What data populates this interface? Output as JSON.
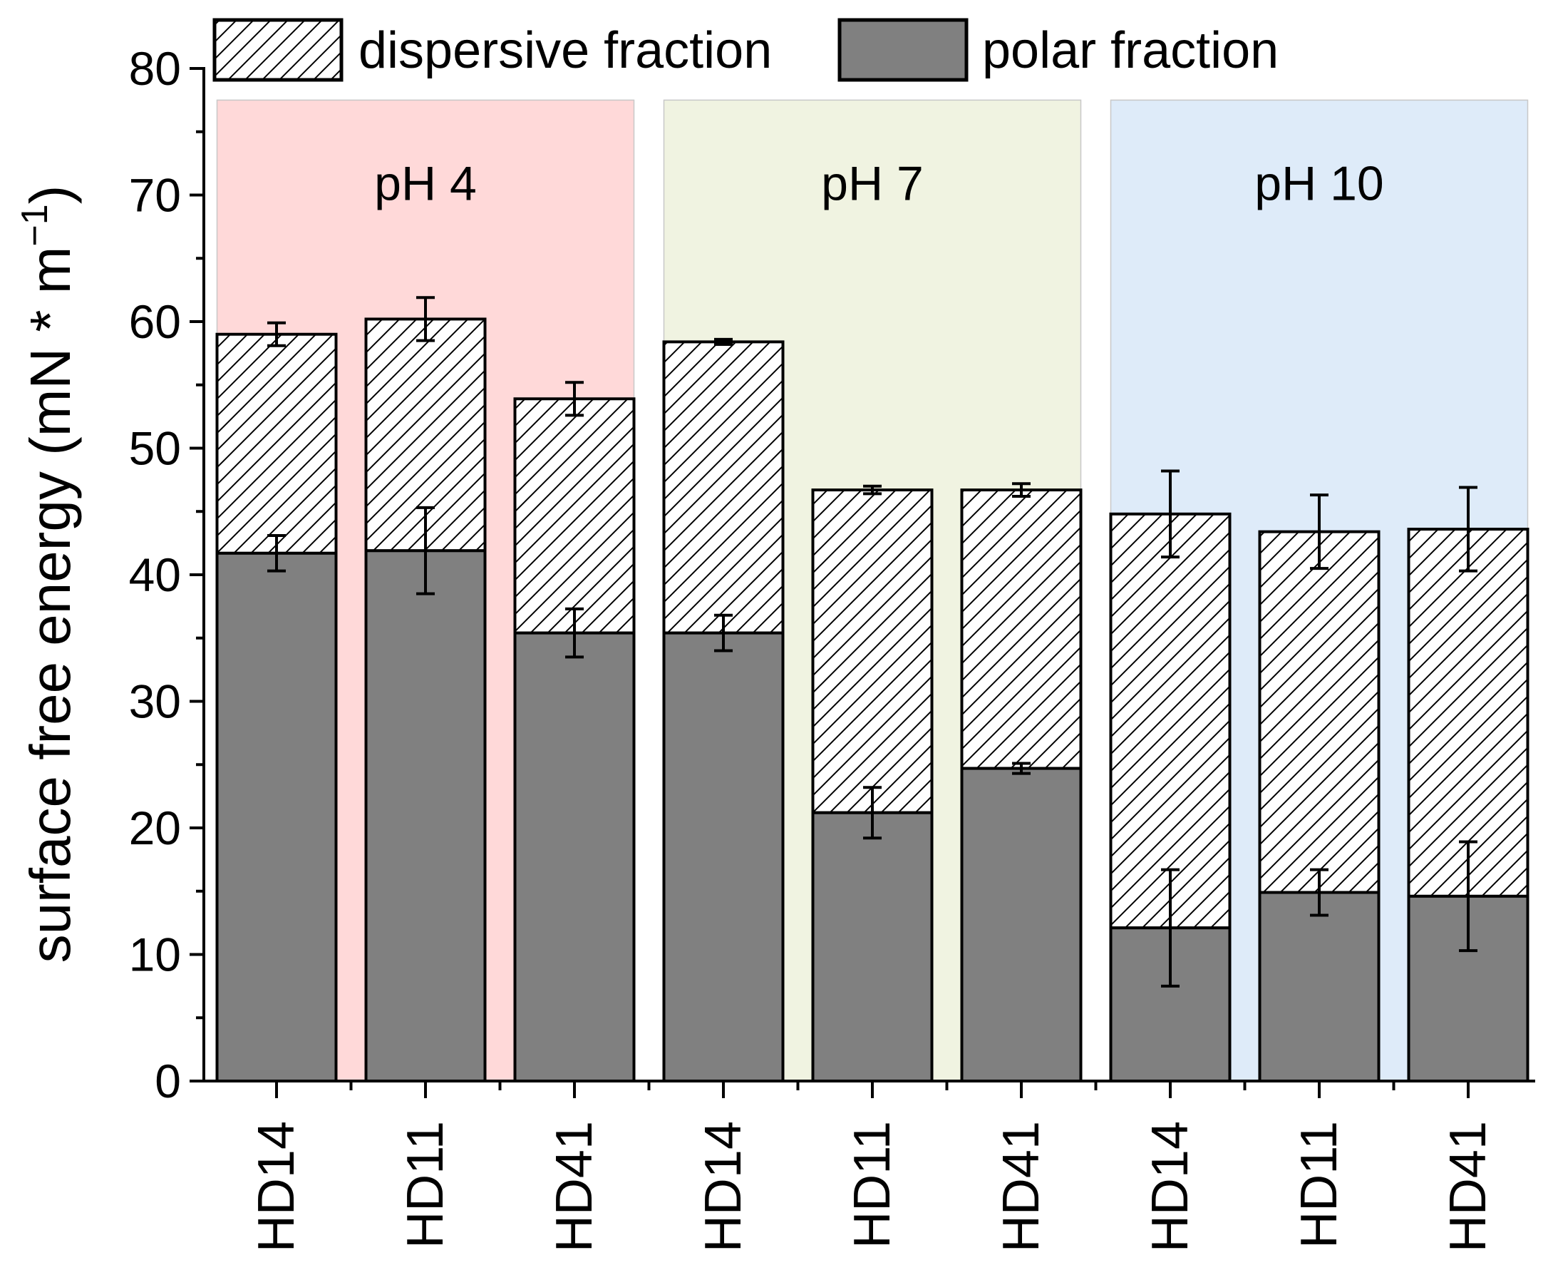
{
  "chart_data": {
    "type": "bar",
    "stacked": true,
    "title": "",
    "xlabel": "",
    "ylabel": "surface free energy (mN * m",
    "ylabel_superscript": "−1",
    "ylabel_close": ")",
    "ylim": [
      0,
      80
    ],
    "yticks": [
      0,
      10,
      20,
      30,
      40,
      50,
      60,
      70,
      80
    ],
    "categories": [
      "HD14",
      "HD11",
      "HD41",
      "HD14",
      "HD11",
      "HD41",
      "HD14",
      "HD11",
      "HD41"
    ],
    "groups": [
      {
        "label": "pH 4",
        "start": 0,
        "end": 2,
        "color": "#ffd9d9"
      },
      {
        "label": "pH 7",
        "start": 3,
        "end": 5,
        "color": "#f0f3e1"
      },
      {
        "label": "pH 10",
        "start": 6,
        "end": 8,
        "color": "#deebf9"
      }
    ],
    "series": [
      {
        "name": "polar fraction",
        "fill": "#808080",
        "values": [
          41.7,
          41.9,
          35.4,
          35.4,
          21.2,
          24.7,
          12.1,
          14.9,
          14.6
        ],
        "errors": [
          1.4,
          3.4,
          1.9,
          1.4,
          2.0,
          0.4,
          4.6,
          1.8,
          4.3
        ]
      },
      {
        "name": "dispersive fraction",
        "fill": "hatch",
        "totals": [
          59.0,
          60.2,
          53.9,
          58.4,
          46.7,
          46.7,
          44.8,
          43.4,
          43.6
        ],
        "errors": [
          0.9,
          1.7,
          1.3,
          0.2,
          0.3,
          0.5,
          3.4,
          2.9,
          3.3
        ]
      }
    ],
    "legend": {
      "placement": "top",
      "entries": [
        {
          "label": "dispersive fraction",
          "fill": "hatch"
        },
        {
          "label": "polar fraction",
          "fill": "#808080"
        }
      ]
    },
    "colors": {
      "axis": "#000000",
      "polar": "#808080",
      "hatch_line": "#000000"
    }
  }
}
